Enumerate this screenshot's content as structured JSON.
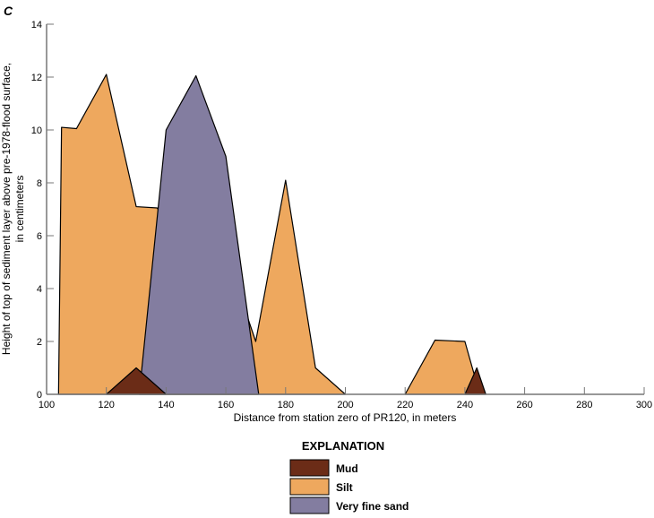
{
  "panel_label": "C",
  "chart_data": {
    "type": "area",
    "xlabel": "Distance from station zero of PR120, in meters",
    "ylabel_lines": [
      "Height of top of sediment layer above pre-1978-flood surface,",
      "in centimeters"
    ],
    "xlim": [
      100,
      300
    ],
    "ylim": [
      0,
      14
    ],
    "xticks": [
      100,
      120,
      140,
      160,
      180,
      200,
      220,
      240,
      260,
      280,
      300
    ],
    "yticks": [
      0,
      2,
      4,
      6,
      8,
      10,
      12,
      14
    ],
    "grid": false,
    "legend_title": "EXPLANATION",
    "legend_position": "bottom-center",
    "series": [
      {
        "name": "Silt",
        "color": "#eea85e",
        "polygons": [
          [
            [
              104,
              0
            ],
            [
              105,
              10.1
            ],
            [
              110,
              10.05
            ],
            [
              120,
              12.1
            ],
            [
              130,
              7.1
            ],
            [
              137,
              7.05
            ],
            [
              150,
              5
            ],
            [
              163,
              3
            ],
            [
              167,
              3
            ],
            [
              170,
              2
            ],
            [
              180,
              8.1
            ],
            [
              190,
              1
            ],
            [
              200,
              0
            ]
          ],
          [
            [
              220,
              0
            ],
            [
              230,
              2.05
            ],
            [
              240,
              2
            ],
            [
              245,
              0
            ]
          ]
        ]
      },
      {
        "name": "Very fine sand",
        "color": "#837da0",
        "polygons": [
          [
            [
              131,
              0
            ],
            [
              140,
              10
            ],
            [
              150,
              12.05
            ],
            [
              160,
              9
            ],
            [
              171,
              0
            ]
          ]
        ]
      },
      {
        "name": "Mud",
        "color": "#6b2c17",
        "polygons": [
          [
            [
              120,
              0
            ],
            [
              130,
              1
            ],
            [
              140,
              0
            ]
          ],
          [
            [
              240,
              0
            ],
            [
              244,
              1
            ],
            [
              247,
              0
            ]
          ]
        ]
      }
    ],
    "legend_order": [
      "Mud",
      "Silt",
      "Very fine sand"
    ]
  }
}
